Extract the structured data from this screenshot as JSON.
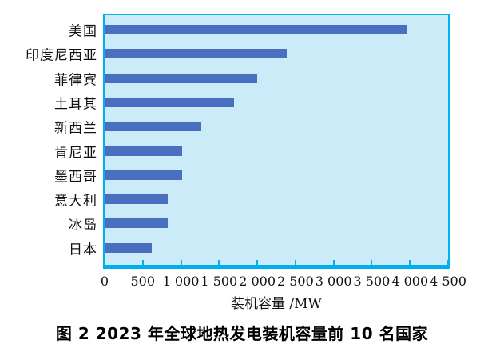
{
  "figure": {
    "caption": "图 2  2023 年全球地热发电装机容量前 10 名国家"
  },
  "chart_data": {
    "type": "bar",
    "orientation": "horizontal",
    "title": "图 2  2023 年全球地热发电装机容量前 10 名国家",
    "categories": [
      "美国",
      "印度尼西亚",
      "菲律宾",
      "土耳其",
      "新西兰",
      "肯尼亚",
      "墨西哥",
      "意大利",
      "冰岛",
      "日本"
    ],
    "values": [
      3970,
      2390,
      2000,
      1700,
      1270,
      1020,
      1010,
      825,
      825,
      620
    ],
    "unit": "MW",
    "xlabel": "装机容量 /MW",
    "ylabel": "",
    "xlim": [
      0,
      4500
    ],
    "xticks": [
      0,
      500,
      1000,
      1500,
      2000,
      2500,
      3000,
      3500,
      4000,
      4500
    ],
    "xtick_labels": [
      "0",
      "500",
      "1 000",
      "1 500",
      "2 000",
      "2 500",
      "3 000",
      "3 500",
      "4 000",
      "4 500"
    ],
    "grid": false,
    "legend": null,
    "colors": {
      "bar": "#4a6ec0",
      "plot_background": "#cbebf8",
      "frame_border": "#00b0f0",
      "text": "#111111",
      "page_background": "#ffffff"
    }
  }
}
